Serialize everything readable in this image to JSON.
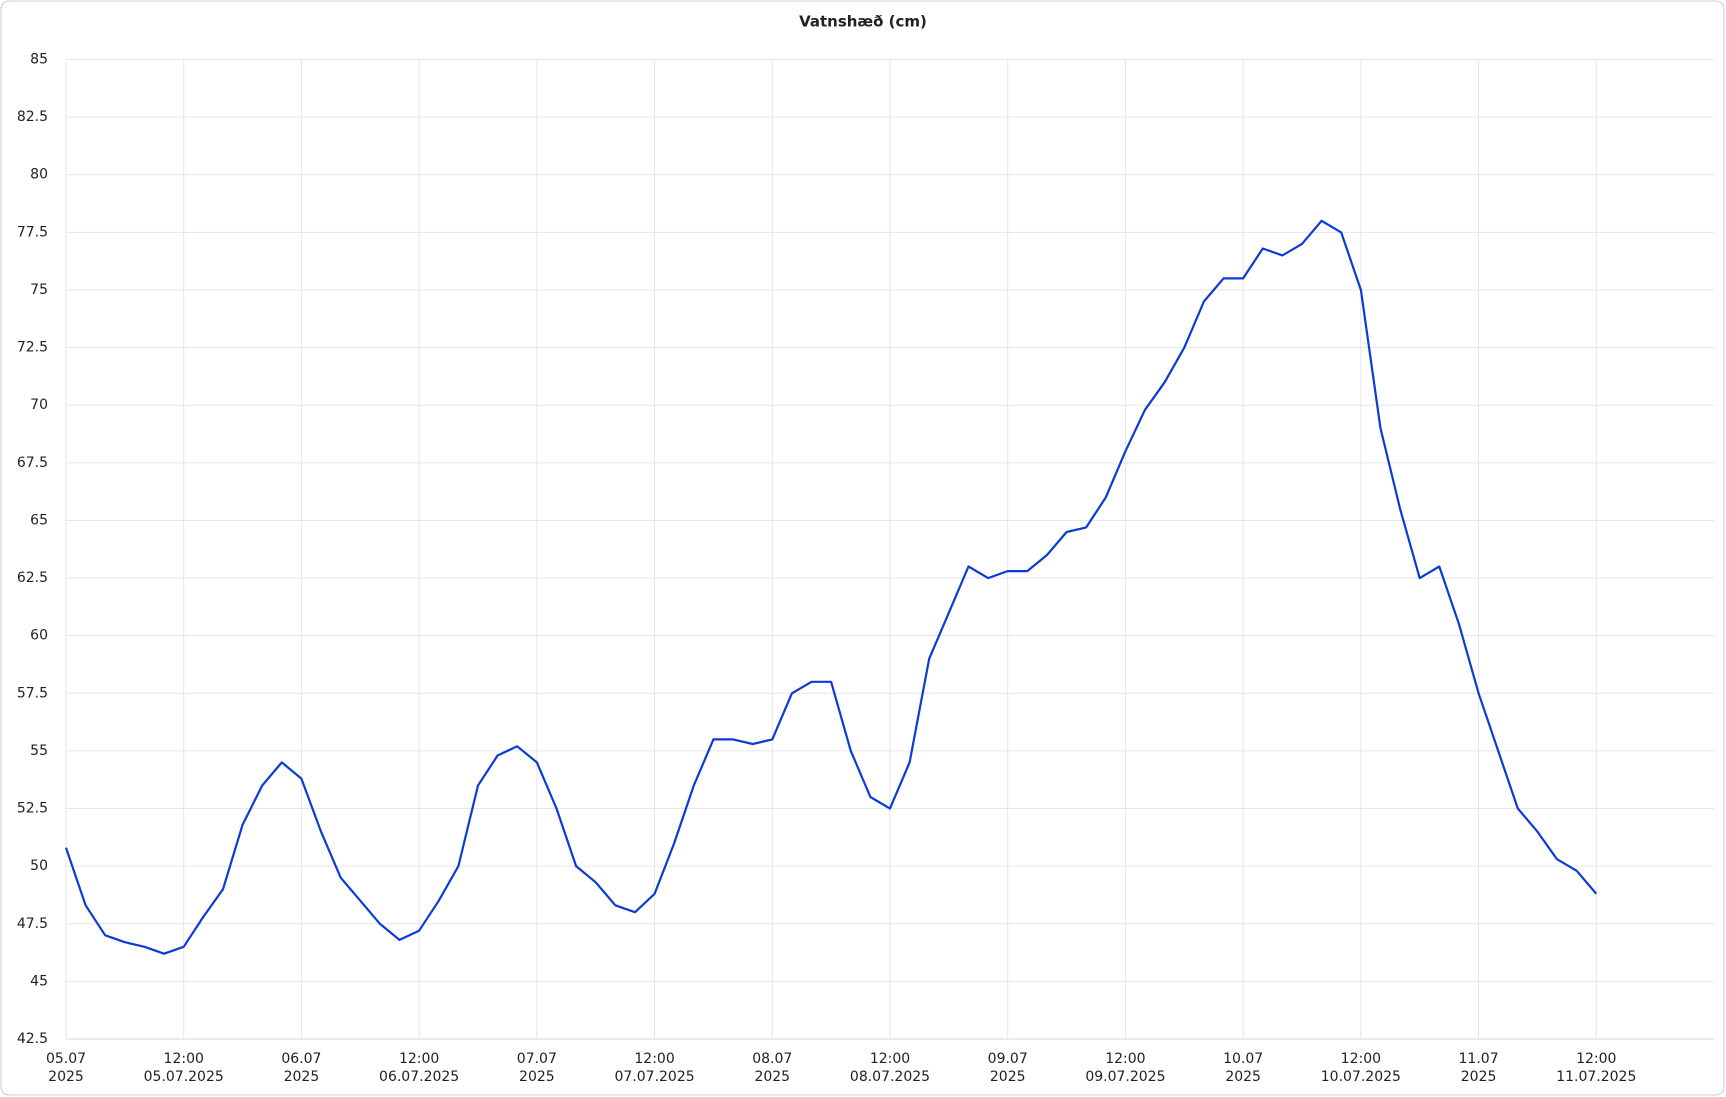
{
  "chart_data": {
    "type": "line",
    "title": "Vatnshæð (cm)",
    "x": [
      "2025-07-05T00:00",
      "2025-07-05T02:00",
      "2025-07-05T04:00",
      "2025-07-05T06:00",
      "2025-07-05T08:00",
      "2025-07-05T10:00",
      "2025-07-05T12:00",
      "2025-07-05T14:00",
      "2025-07-05T16:00",
      "2025-07-05T18:00",
      "2025-07-05T20:00",
      "2025-07-05T22:00",
      "2025-07-06T00:00",
      "2025-07-06T02:00",
      "2025-07-06T04:00",
      "2025-07-06T06:00",
      "2025-07-06T08:00",
      "2025-07-06T10:00",
      "2025-07-06T12:00",
      "2025-07-06T14:00",
      "2025-07-06T16:00",
      "2025-07-06T18:00",
      "2025-07-06T20:00",
      "2025-07-06T22:00",
      "2025-07-07T00:00",
      "2025-07-07T02:00",
      "2025-07-07T04:00",
      "2025-07-07T06:00",
      "2025-07-07T08:00",
      "2025-07-07T10:00",
      "2025-07-07T12:00",
      "2025-07-07T14:00",
      "2025-07-07T16:00",
      "2025-07-07T18:00",
      "2025-07-07T20:00",
      "2025-07-07T22:00",
      "2025-07-08T00:00",
      "2025-07-08T02:00",
      "2025-07-08T04:00",
      "2025-07-08T06:00",
      "2025-07-08T08:00",
      "2025-07-08T10:00",
      "2025-07-08T12:00",
      "2025-07-08T14:00",
      "2025-07-08T16:00",
      "2025-07-08T18:00",
      "2025-07-08T20:00",
      "2025-07-08T22:00",
      "2025-07-09T00:00",
      "2025-07-09T02:00",
      "2025-07-09T04:00",
      "2025-07-09T06:00",
      "2025-07-09T08:00",
      "2025-07-09T10:00",
      "2025-07-09T12:00",
      "2025-07-09T14:00",
      "2025-07-09T16:00",
      "2025-07-09T18:00",
      "2025-07-09T20:00",
      "2025-07-09T22:00",
      "2025-07-10T00:00",
      "2025-07-10T02:00",
      "2025-07-10T04:00",
      "2025-07-10T06:00",
      "2025-07-10T08:00",
      "2025-07-10T10:00",
      "2025-07-10T12:00",
      "2025-07-10T14:00",
      "2025-07-10T16:00",
      "2025-07-10T18:00",
      "2025-07-10T20:00",
      "2025-07-10T22:00",
      "2025-07-11T00:00",
      "2025-07-11T02:00",
      "2025-07-11T04:00",
      "2025-07-11T06:00",
      "2025-07-11T08:00",
      "2025-07-11T10:00",
      "2025-07-11T12:00"
    ],
    "series": [
      {
        "name": "Vatnshæð",
        "color": "#0b3bd6",
        "values": [
          50.8,
          48.3,
          47,
          46.7,
          46.5,
          46.2,
          46.5,
          47.8,
          49,
          51.8,
          53.5,
          54.5,
          53.8,
          51.5,
          49.5,
          48.5,
          47.5,
          46.8,
          47.2,
          48.5,
          50,
          53.5,
          54.8,
          55.2,
          54.5,
          52.5,
          50,
          49.3,
          48.3,
          48,
          48.8,
          51,
          53.5,
          55.5,
          55.5,
          55.3,
          55.5,
          57.5,
          58,
          58,
          55,
          53,
          52.5,
          54.5,
          59,
          61,
          63,
          62.5,
          62.8,
          62.8,
          63.5,
          64.5,
          64.7,
          66,
          68,
          69.8,
          71,
          72.5,
          74.5,
          75.5,
          75.5,
          76.8,
          76.5,
          77,
          78,
          77.5,
          75,
          69,
          65.5,
          62.5,
          63,
          60.5,
          57.5,
          55,
          52.5,
          51.5,
          50.3,
          49.8,
          48.8
        ]
      }
    ],
    "xlim": [
      "2025-07-05T00:00",
      "2025-07-12T00:00"
    ],
    "xticks": [
      {
        "value": "2025-07-05T00:00",
        "label": [
          "05.07",
          "2025"
        ]
      },
      {
        "value": "2025-07-05T12:00",
        "label": [
          "12:00",
          "05.07.2025"
        ]
      },
      {
        "value": "2025-07-06T00:00",
        "label": [
          "06.07",
          "2025"
        ]
      },
      {
        "value": "2025-07-06T12:00",
        "label": [
          "12:00",
          "06.07.2025"
        ]
      },
      {
        "value": "2025-07-07T00:00",
        "label": [
          "07.07",
          "2025"
        ]
      },
      {
        "value": "2025-07-07T12:00",
        "label": [
          "12:00",
          "07.07.2025"
        ]
      },
      {
        "value": "2025-07-08T00:00",
        "label": [
          "08.07",
          "2025"
        ]
      },
      {
        "value": "2025-07-08T12:00",
        "label": [
          "12:00",
          "08.07.2025"
        ]
      },
      {
        "value": "2025-07-09T00:00",
        "label": [
          "09.07",
          "2025"
        ]
      },
      {
        "value": "2025-07-09T12:00",
        "label": [
          "12:00",
          "09.07.2025"
        ]
      },
      {
        "value": "2025-07-10T00:00",
        "label": [
          "10.07",
          "2025"
        ]
      },
      {
        "value": "2025-07-10T12:00",
        "label": [
          "12:00",
          "10.07.2025"
        ]
      },
      {
        "value": "2025-07-11T00:00",
        "label": [
          "11.07",
          "2025"
        ]
      },
      {
        "value": "2025-07-11T12:00",
        "label": [
          "12:00",
          "11.07.2025"
        ]
      }
    ],
    "ylim": [
      42.5,
      85
    ],
    "yticks": [
      42.5,
      45,
      47.5,
      50,
      52.5,
      55,
      57.5,
      60,
      62.5,
      65,
      67.5,
      70,
      72.5,
      75,
      77.5,
      80,
      82.5,
      85
    ],
    "grid": true
  }
}
